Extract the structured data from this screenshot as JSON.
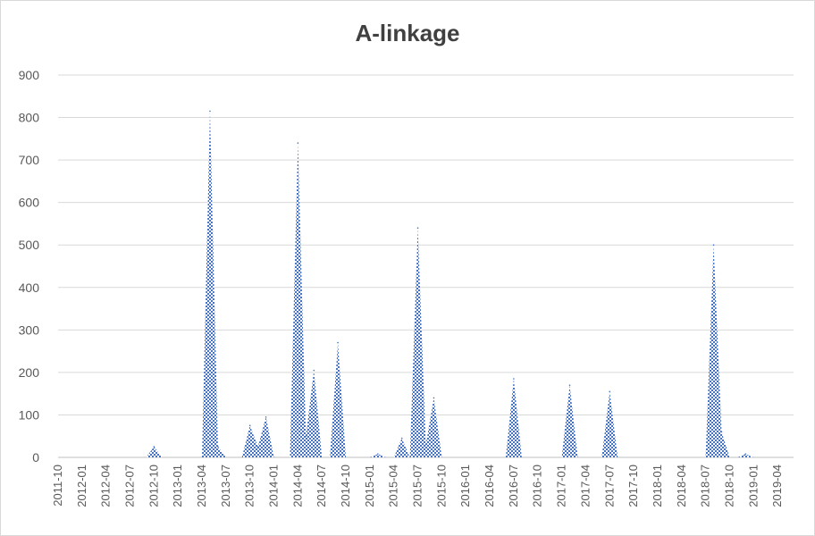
{
  "chart_data": {
    "type": "area",
    "title": "A-linkage",
    "xlabel": "",
    "ylabel": "",
    "ylim": [
      0,
      900
    ],
    "yticks": [
      0,
      100,
      200,
      300,
      400,
      500,
      600,
      700,
      800,
      900
    ],
    "grid": true,
    "legend": "none",
    "color": "#4472c4",
    "fill_pattern": "checkerboard",
    "start_month": "2011-10",
    "end_month": "2019-06",
    "x_tick_labels": [
      "2011-10",
      "2012-01",
      "2012-04",
      "2012-07",
      "2012-10",
      "2013-01",
      "2013-04",
      "2013-07",
      "2013-10",
      "2014-01",
      "2014-04",
      "2014-07",
      "2014-10",
      "2015-01",
      "2015-04",
      "2015-07",
      "2015-10",
      "2016-01",
      "2016-04",
      "2016-07",
      "2016-10",
      "2017-01",
      "2017-04",
      "2017-07",
      "2017-10",
      "2018-01",
      "2018-04",
      "2018-07",
      "2018-10",
      "2019-01",
      "2019-04"
    ],
    "series": [
      {
        "points": [
          [
            "2012-10",
            25
          ],
          [
            "2013-05",
            815
          ],
          [
            "2013-06",
            25
          ],
          [
            "2013-10",
            75
          ],
          [
            "2013-11",
            25
          ],
          [
            "2013-12",
            95
          ],
          [
            "2014-04",
            740
          ],
          [
            "2014-05",
            50
          ],
          [
            "2014-06",
            205
          ],
          [
            "2014-09",
            270
          ],
          [
            "2015-02",
            8
          ],
          [
            "2015-05",
            45
          ],
          [
            "2015-07",
            540
          ],
          [
            "2015-08",
            30
          ],
          [
            "2015-09",
            140
          ],
          [
            "2016-07",
            185
          ],
          [
            "2017-02",
            170
          ],
          [
            "2017-07",
            155
          ],
          [
            "2018-08",
            500
          ],
          [
            "2018-09",
            60
          ],
          [
            "2018-12",
            8
          ]
        ]
      }
    ]
  }
}
